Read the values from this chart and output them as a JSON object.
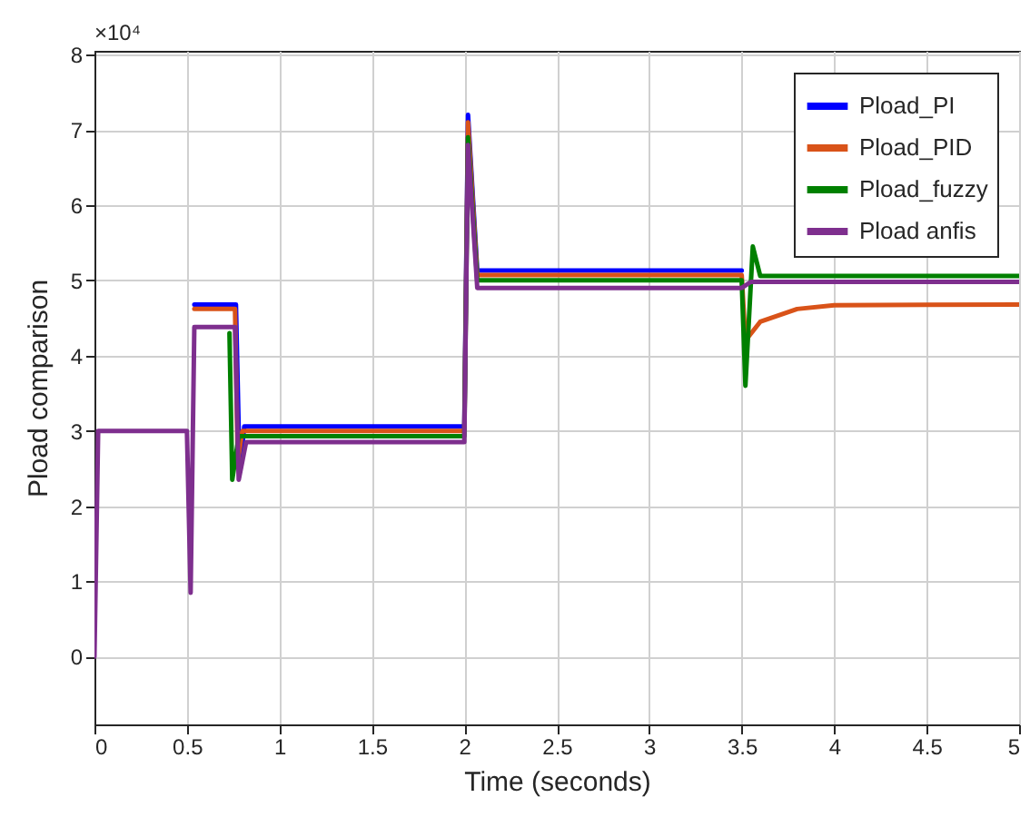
{
  "chart_data": {
    "type": "line",
    "xlabel": "Time (seconds)",
    "ylabel": "Pload comparison",
    "annotations": [
      "×10⁴"
    ],
    "xlim": [
      0,
      5
    ],
    "xticks": [
      0,
      0.5,
      1,
      1.5,
      2,
      2.5,
      3,
      3.5,
      4,
      4.5,
      5
    ],
    "ylim": [
      -0.9,
      8.05
    ],
    "yticks": [
      0,
      1,
      2,
      3,
      4,
      5,
      6,
      7,
      8
    ],
    "grid": true,
    "legend": "top right",
    "line_style": "solid",
    "marker": "none",
    "series": [
      {
        "name": "Pload_PI",
        "color": "#0000ff",
        "x": [
          0.54,
          0.765,
          0.785,
          0.81,
          2.0,
          2.02,
          2.07,
          3.5
        ],
        "values": [
          4.68,
          4.68,
          2.45,
          3.06,
          3.06,
          7.2,
          5.13,
          5.13
        ]
      },
      {
        "name": "Pload_PID",
        "color": "#d95319",
        "x": [
          0.54,
          0.76,
          0.775,
          0.8,
          2.0,
          2.02,
          2.07,
          3.5,
          3.52,
          3.6,
          3.8,
          4.0,
          5
        ],
        "values": [
          4.62,
          4.62,
          2.6,
          3.0,
          3.0,
          7.1,
          5.07,
          5.07,
          4.2,
          4.45,
          4.62,
          4.67,
          4.68
        ]
      },
      {
        "name": "Pload_fuzzy",
        "color": "#008000",
        "x": [
          0.73,
          0.745,
          0.78,
          2.0,
          2.02,
          2.07,
          3.5,
          3.52,
          3.56,
          3.6,
          5
        ],
        "values": [
          4.3,
          2.35,
          2.93,
          2.93,
          6.9,
          5.0,
          5.0,
          3.6,
          5.45,
          5.06,
          5.06
        ]
      },
      {
        "name": "Pload anfis",
        "color": "#7e2f8e",
        "x": [
          0,
          0.02,
          0.5,
          0.52,
          0.54,
          0.76,
          0.78,
          0.82,
          2.0,
          2.02,
          2.07,
          3.5,
          3.55,
          5
        ],
        "values": [
          0,
          3,
          3,
          0.85,
          4.38,
          4.38,
          2.35,
          2.85,
          2.85,
          6.8,
          4.9,
          4.9,
          4.98,
          4.98
        ]
      }
    ]
  }
}
